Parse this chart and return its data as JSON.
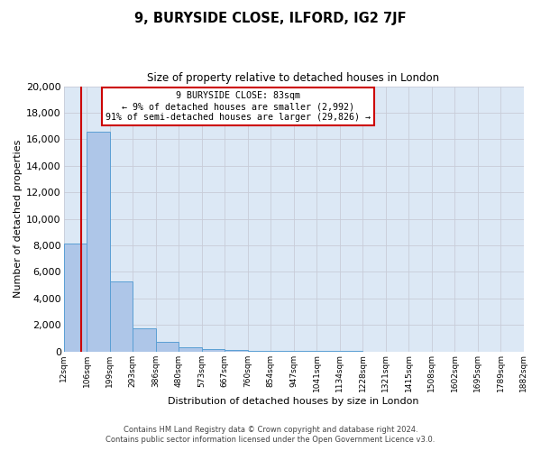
{
  "title": "9, BURYSIDE CLOSE, ILFORD, IG2 7JF",
  "subtitle": "Size of property relative to detached houses in London",
  "xlabel": "Distribution of detached houses by size in London",
  "ylabel": "Number of detached properties",
  "bar_values": [
    8100,
    16600,
    5300,
    1750,
    700,
    300,
    200,
    100,
    50,
    20,
    10,
    5,
    3,
    2,
    1,
    1,
    0,
    0,
    0,
    0
  ],
  "bin_edges": [
    12,
    106,
    199,
    293,
    386,
    480,
    573,
    667,
    760,
    854,
    947,
    1041,
    1134,
    1228,
    1321,
    1415,
    1508,
    1602,
    1695,
    1789,
    1882
  ],
  "x_tick_labels": [
    "12sqm",
    "106sqm",
    "199sqm",
    "293sqm",
    "386sqm",
    "480sqm",
    "573sqm",
    "667sqm",
    "760sqm",
    "854sqm",
    "947sqm",
    "1041sqm",
    "1134sqm",
    "1228sqm",
    "1321sqm",
    "1415sqm",
    "1508sqm",
    "1602sqm",
    "1695sqm",
    "1789sqm",
    "1882sqm"
  ],
  "bar_color": "#aec6e8",
  "bar_edge_color": "#5a9fd4",
  "property_line_x": 83,
  "property_line_color": "#cc0000",
  "ylim": [
    0,
    20000
  ],
  "yticks": [
    0,
    2000,
    4000,
    6000,
    8000,
    10000,
    12000,
    14000,
    16000,
    18000,
    20000
  ],
  "annotation_text": "9 BURYSIDE CLOSE: 83sqm\n← 9% of detached houses are smaller (2,992)\n91% of semi-detached houses are larger (29,826) →",
  "annotation_box_color": "#cc0000",
  "grid_color": "#c8ccd8",
  "background_color": "#dce8f5",
  "footer_line1": "Contains HM Land Registry data © Crown copyright and database right 2024.",
  "footer_line2": "Contains public sector information licensed under the Open Government Licence v3.0."
}
